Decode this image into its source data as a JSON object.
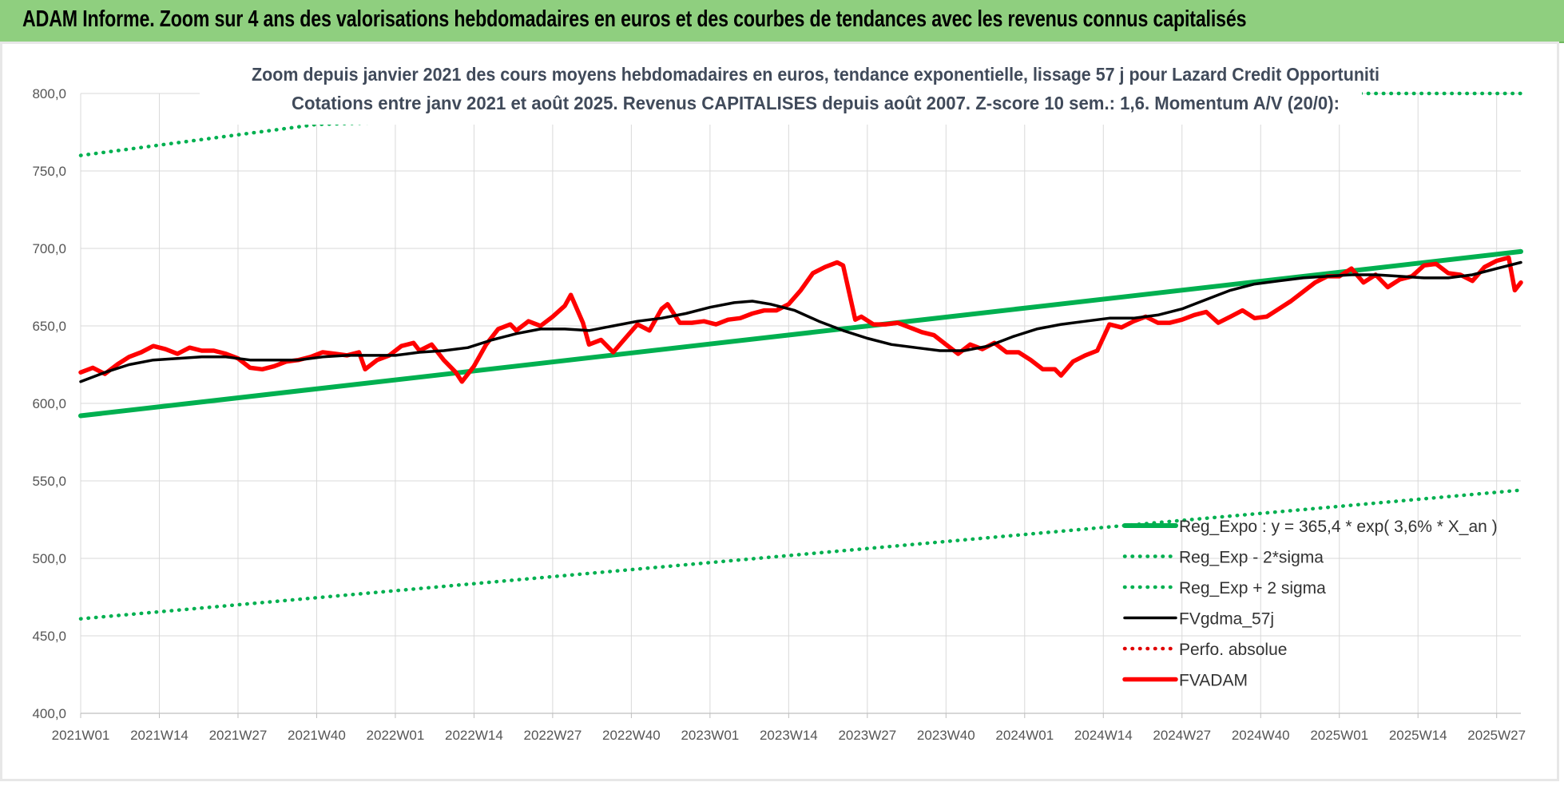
{
  "header": {
    "title": "ADAM Informe. Zoom sur 4 ans des valorisations hebdomadaires en euros et des courbes de tendances avec les revenus connus capitalisés"
  },
  "chart_data": {
    "type": "line",
    "title_lines": [
      "Zoom depuis janvier 2021 des cours moyens hebdomadaires en euros, tendance exponentielle, lissage 57 j pour Lazard Credit Opportuniti",
      "Cotations entre janv 2021 et août 2025. Revenus CAPITALISES depuis août 2007. Z-score 10 sem.: 1,6. Momentum A/V (20/0):"
    ],
    "x_unit": "week index (0 = 2021W01)",
    "x_ticks": [
      {
        "x": 0,
        "label": "2021W01"
      },
      {
        "x": 13,
        "label": "2021W14"
      },
      {
        "x": 26,
        "label": "2021W27"
      },
      {
        "x": 39,
        "label": "2021W40"
      },
      {
        "x": 52,
        "label": "2022W01"
      },
      {
        "x": 65,
        "label": "2022W14"
      },
      {
        "x": 78,
        "label": "2022W27"
      },
      {
        "x": 91,
        "label": "2022W40"
      },
      {
        "x": 104,
        "label": "2023W01"
      },
      {
        "x": 117,
        "label": "2023W14"
      },
      {
        "x": 130,
        "label": "2023W27"
      },
      {
        "x": 143,
        "label": "2023W40"
      },
      {
        "x": 156,
        "label": "2024W01"
      },
      {
        "x": 169,
        "label": "2024W14"
      },
      {
        "x": 182,
        "label": "2024W27"
      },
      {
        "x": 195,
        "label": "2024W40"
      },
      {
        "x": 208,
        "label": "2025W01"
      },
      {
        "x": 221,
        "label": "2025W14"
      },
      {
        "x": 234,
        "label": "2025W27"
      }
    ],
    "xlim": [
      0,
      238
    ],
    "ylim": [
      400,
      800
    ],
    "y_ticks": [
      "400,0",
      "450,0",
      "500,0",
      "550,0",
      "600,0",
      "650,0",
      "700,0",
      "750,0",
      "800,0"
    ],
    "y_tick_values": [
      400,
      450,
      500,
      550,
      600,
      650,
      700,
      750,
      800
    ],
    "grid": true,
    "legend_position": "bottom-right",
    "series": [
      {
        "name": "Reg_Expo : y = 365,4 * exp( 3,6% *  X_an )",
        "style": "solid-thick",
        "color": "#00b050",
        "points": [
          [
            0,
            592
          ],
          [
            238,
            698
          ]
        ]
      },
      {
        "name": "Reg_Exp - 2*sigma",
        "style": "dotted",
        "color": "#00b050",
        "points": [
          [
            0,
            461
          ],
          [
            238,
            544
          ]
        ]
      },
      {
        "name": "Reg_Exp + 2 sigma",
        "style": "dotted",
        "color": "#00b050",
        "points": [
          [
            0,
            760
          ],
          [
            39,
            780
          ],
          [
            211,
            800
          ],
          [
            238,
            800
          ]
        ]
      },
      {
        "name": "FVgdma_57j",
        "style": "solid",
        "color": "#000000",
        "points": [
          [
            0,
            614
          ],
          [
            4,
            620
          ],
          [
            8,
            625
          ],
          [
            12,
            628
          ],
          [
            16,
            629
          ],
          [
            20,
            630
          ],
          [
            24,
            630
          ],
          [
            28,
            628
          ],
          [
            32,
            628
          ],
          [
            36,
            628
          ],
          [
            40,
            630
          ],
          [
            44,
            631
          ],
          [
            48,
            631
          ],
          [
            52,
            631
          ],
          [
            56,
            633
          ],
          [
            60,
            634
          ],
          [
            64,
            636
          ],
          [
            68,
            641
          ],
          [
            72,
            645
          ],
          [
            76,
            648
          ],
          [
            80,
            648
          ],
          [
            84,
            647
          ],
          [
            88,
            650
          ],
          [
            92,
            653
          ],
          [
            96,
            655
          ],
          [
            100,
            658
          ],
          [
            104,
            662
          ],
          [
            108,
            665
          ],
          [
            111,
            666
          ],
          [
            114,
            664
          ],
          [
            118,
            660
          ],
          [
            122,
            653
          ],
          [
            126,
            647
          ],
          [
            130,
            642
          ],
          [
            134,
            638
          ],
          [
            138,
            636
          ],
          [
            142,
            634
          ],
          [
            146,
            634
          ],
          [
            150,
            637
          ],
          [
            154,
            643
          ],
          [
            158,
            648
          ],
          [
            162,
            651
          ],
          [
            166,
            653
          ],
          [
            170,
            655
          ],
          [
            174,
            655
          ],
          [
            178,
            657
          ],
          [
            182,
            661
          ],
          [
            186,
            667
          ],
          [
            190,
            673
          ],
          [
            194,
            677
          ],
          [
            198,
            679
          ],
          [
            202,
            681
          ],
          [
            206,
            682
          ],
          [
            210,
            683
          ],
          [
            214,
            683
          ],
          [
            218,
            682
          ],
          [
            222,
            681
          ],
          [
            226,
            681
          ],
          [
            230,
            683
          ],
          [
            234,
            687
          ],
          [
            238,
            691
          ]
        ]
      },
      {
        "name": "Perfo. absolue",
        "style": "dotted",
        "color": "#e00000",
        "points": []
      },
      {
        "name": "FVADAM",
        "style": "solid-thick",
        "color": "#ff0000",
        "points": [
          [
            0,
            620
          ],
          [
            2,
            623
          ],
          [
            4,
            619
          ],
          [
            6,
            625
          ],
          [
            8,
            630
          ],
          [
            10,
            633
          ],
          [
            12,
            637
          ],
          [
            14,
            635
          ],
          [
            16,
            632
          ],
          [
            18,
            636
          ],
          [
            20,
            634
          ],
          [
            22,
            634
          ],
          [
            24,
            632
          ],
          [
            26,
            629
          ],
          [
            28,
            623
          ],
          [
            30,
            622
          ],
          [
            32,
            624
          ],
          [
            34,
            627
          ],
          [
            36,
            628
          ],
          [
            38,
            630
          ],
          [
            40,
            633
          ],
          [
            42,
            632
          ],
          [
            44,
            631
          ],
          [
            46,
            633
          ],
          [
            47,
            622
          ],
          [
            49,
            628
          ],
          [
            51,
            631
          ],
          [
            53,
            637
          ],
          [
            55,
            639
          ],
          [
            56,
            634
          ],
          [
            58,
            638
          ],
          [
            60,
            628
          ],
          [
            62,
            620
          ],
          [
            63,
            614
          ],
          [
            65,
            624
          ],
          [
            67,
            638
          ],
          [
            69,
            648
          ],
          [
            71,
            651
          ],
          [
            72,
            647
          ],
          [
            74,
            653
          ],
          [
            76,
            650
          ],
          [
            78,
            656
          ],
          [
            80,
            663
          ],
          [
            81,
            670
          ],
          [
            83,
            652
          ],
          [
            84,
            638
          ],
          [
            86,
            641
          ],
          [
            88,
            633
          ],
          [
            90,
            642
          ],
          [
            92,
            651
          ],
          [
            94,
            647
          ],
          [
            96,
            661
          ],
          [
            97,
            664
          ],
          [
            99,
            652
          ],
          [
            101,
            652
          ],
          [
            103,
            653
          ],
          [
            105,
            651
          ],
          [
            107,
            654
          ],
          [
            109,
            655
          ],
          [
            111,
            658
          ],
          [
            113,
            660
          ],
          [
            115,
            660
          ],
          [
            117,
            664
          ],
          [
            119,
            673
          ],
          [
            121,
            684
          ],
          [
            123,
            688
          ],
          [
            125,
            691
          ],
          [
            126,
            689
          ],
          [
            128,
            654
          ],
          [
            129,
            656
          ],
          [
            131,
            651
          ],
          [
            133,
            651
          ],
          [
            135,
            652
          ],
          [
            137,
            649
          ],
          [
            139,
            646
          ],
          [
            141,
            644
          ],
          [
            143,
            638
          ],
          [
            145,
            632
          ],
          [
            147,
            638
          ],
          [
            149,
            635
          ],
          [
            151,
            639
          ],
          [
            153,
            633
          ],
          [
            155,
            633
          ],
          [
            157,
            628
          ],
          [
            159,
            622
          ],
          [
            161,
            622
          ],
          [
            162,
            618
          ],
          [
            164,
            627
          ],
          [
            166,
            631
          ],
          [
            168,
            634
          ],
          [
            170,
            651
          ],
          [
            172,
            649
          ],
          [
            174,
            653
          ],
          [
            176,
            656
          ],
          [
            178,
            652
          ],
          [
            180,
            652
          ],
          [
            182,
            654
          ],
          [
            184,
            657
          ],
          [
            186,
            659
          ],
          [
            188,
            652
          ],
          [
            190,
            656
          ],
          [
            192,
            660
          ],
          [
            194,
            655
          ],
          [
            196,
            656
          ],
          [
            198,
            661
          ],
          [
            200,
            666
          ],
          [
            202,
            672
          ],
          [
            204,
            678
          ],
          [
            206,
            682
          ],
          [
            208,
            682
          ],
          [
            210,
            687
          ],
          [
            212,
            678
          ],
          [
            214,
            683
          ],
          [
            216,
            675
          ],
          [
            218,
            680
          ],
          [
            220,
            682
          ],
          [
            222,
            689
          ],
          [
            224,
            690
          ],
          [
            226,
            684
          ],
          [
            228,
            683
          ],
          [
            230,
            679
          ],
          [
            232,
            688
          ],
          [
            234,
            692
          ],
          [
            236,
            694
          ],
          [
            237,
            673
          ],
          [
            238,
            678
          ]
        ]
      }
    ]
  }
}
